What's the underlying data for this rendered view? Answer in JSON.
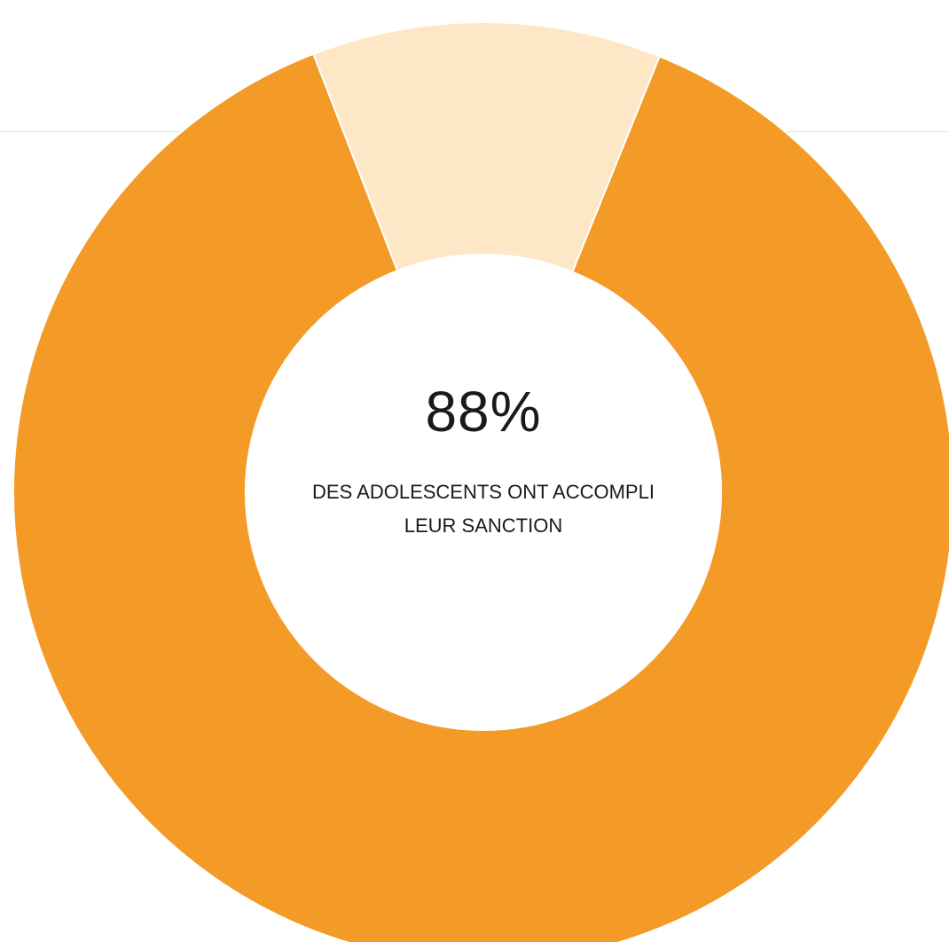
{
  "chart_data": {
    "type": "pie",
    "variant": "donut",
    "slices": [
      {
        "value": 88,
        "color": "#f39a27"
      },
      {
        "value": 12,
        "color": "#fde7c7"
      }
    ],
    "start_angle_deg": 22,
    "center_text": {
      "value": "88%",
      "line1": "DES ADOLESCENTS ONT ACCOMPLI",
      "line2": "LEUR SANCTION"
    },
    "title": "",
    "legend": "none"
  }
}
